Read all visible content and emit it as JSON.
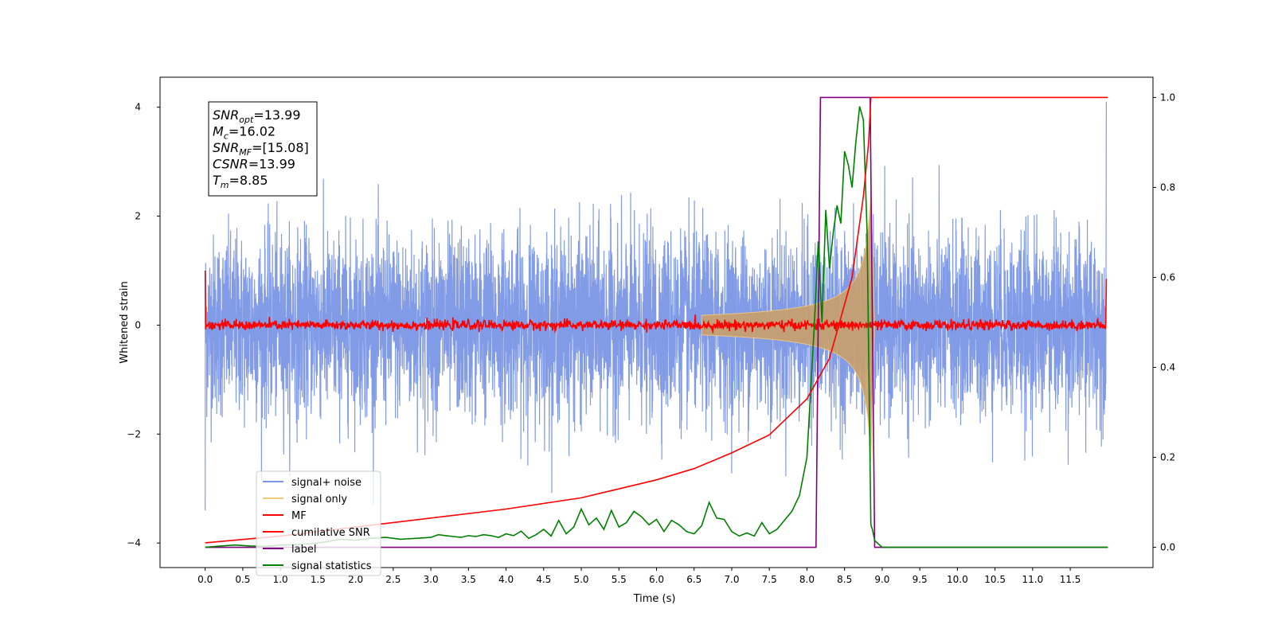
{
  "chart_data": {
    "type": "line",
    "title": "",
    "xlabel": "Time (s)",
    "ylabel": "Whitened strain",
    "xlim": [
      -0.6,
      12.6
    ],
    "ylim": [
      -4.45,
      4.55
    ],
    "y2lim": [
      -0.045,
      1.045
    ],
    "xticks": [
      "0.0",
      "0.5",
      "1.0",
      "1.5",
      "2.0",
      "2.5",
      "3.0",
      "3.5",
      "4.0",
      "4.5",
      "5.0",
      "5.5",
      "6.0",
      "6.5",
      "7.0",
      "7.5",
      "8.0",
      "8.5",
      "9.0",
      "9.5",
      "10.0",
      "10.5",
      "11.0",
      "11.5"
    ],
    "yticks_left": [
      "−4",
      "−2",
      "0",
      "2",
      "4"
    ],
    "yticks_right": [
      "0.0",
      "0.2",
      "0.4",
      "0.6",
      "0.8",
      "1.0"
    ],
    "grid": false,
    "legend_placement": "lower-left",
    "annotation": [
      {
        "base": "SNR",
        "sub": "opt",
        "value": "=13.99"
      },
      {
        "base": "M",
        "sub": "c",
        "value": "=16.02"
      },
      {
        "base": "SNR",
        "sub": "MF",
        "value": "=[15.08]"
      },
      {
        "base": "CSNR",
        "sub": "",
        "value": "=13.99"
      },
      {
        "base": "T",
        "sub": "m",
        "value": "=8.85"
      }
    ],
    "series": [
      {
        "name": "signal+ noise",
        "color": "#7b96e6",
        "axis": "left",
        "description": "white noise, std ~0.8, range ~[-4, 4]"
      },
      {
        "name": "signal only",
        "color": "#f5c97a",
        "axis": "left",
        "chirp": {
          "t_merge": 8.85,
          "peak_amp": 2.5,
          "ring_end": 8.9
        }
      },
      {
        "name": "MF",
        "color": "#ff0000",
        "axis": "left",
        "description": "matched filter output, ~0 +/- 0.1, edges ~1.0 and ~0.85"
      },
      {
        "name": "cumilative SNR",
        "color": "#ff0000",
        "axis": "right",
        "x": [
          0.0,
          1.0,
          2.0,
          3.0,
          4.0,
          5.0,
          6.0,
          6.5,
          7.0,
          7.5,
          8.0,
          8.3,
          8.6,
          8.75,
          8.82,
          8.85,
          8.86,
          12.0
        ],
        "y": [
          0.01,
          0.025,
          0.045,
          0.065,
          0.085,
          0.11,
          0.15,
          0.175,
          0.21,
          0.25,
          0.33,
          0.42,
          0.6,
          0.78,
          0.9,
          1.0,
          1.0,
          1.0
        ]
      },
      {
        "name": "label",
        "color": "#800080",
        "axis": "right",
        "x": [
          0.0,
          8.12,
          8.18,
          8.84,
          8.9,
          12.0
        ],
        "y": [
          0.0,
          0.0,
          1.0,
          1.0,
          0.0,
          0.0
        ]
      },
      {
        "name": "signal statistics",
        "color": "#008000",
        "axis": "right",
        "x": [
          0.0,
          0.2,
          0.4,
          0.6,
          0.8,
          1.0,
          1.2,
          1.4,
          1.6,
          1.8,
          2.0,
          2.2,
          2.4,
          2.6,
          2.8,
          3.0,
          3.1,
          3.2,
          3.3,
          3.4,
          3.5,
          3.6,
          3.7,
          3.8,
          3.9,
          4.0,
          4.1,
          4.2,
          4.3,
          4.4,
          4.5,
          4.6,
          4.7,
          4.8,
          4.9,
          5.0,
          5.1,
          5.2,
          5.3,
          5.4,
          5.5,
          5.6,
          5.7,
          5.8,
          5.9,
          6.0,
          6.1,
          6.2,
          6.3,
          6.4,
          6.5,
          6.6,
          6.7,
          6.8,
          6.9,
          7.0,
          7.1,
          7.2,
          7.3,
          7.4,
          7.5,
          7.6,
          7.7,
          7.8,
          7.9,
          8.0,
          8.1,
          8.15,
          8.2,
          8.25,
          8.3,
          8.35,
          8.4,
          8.45,
          8.5,
          8.55,
          8.6,
          8.65,
          8.7,
          8.75,
          8.8,
          8.85,
          8.87,
          8.9,
          9.0,
          12.0
        ],
        "y": [
          0.0,
          0.003,
          0.005,
          0.003,
          0.002,
          0.005,
          0.006,
          0.008,
          0.012,
          0.018,
          0.016,
          0.02,
          0.022,
          0.018,
          0.02,
          0.022,
          0.028,
          0.026,
          0.024,
          0.022,
          0.026,
          0.024,
          0.028,
          0.026,
          0.022,
          0.03,
          0.026,
          0.036,
          0.02,
          0.028,
          0.04,
          0.025,
          0.06,
          0.03,
          0.045,
          0.085,
          0.05,
          0.065,
          0.04,
          0.082,
          0.045,
          0.055,
          0.08,
          0.068,
          0.05,
          0.062,
          0.035,
          0.06,
          0.05,
          0.035,
          0.03,
          0.048,
          0.1,
          0.065,
          0.062,
          0.035,
          0.025,
          0.032,
          0.025,
          0.055,
          0.03,
          0.04,
          0.06,
          0.08,
          0.115,
          0.2,
          0.5,
          0.68,
          0.5,
          0.75,
          0.62,
          0.7,
          0.76,
          0.72,
          0.88,
          0.85,
          0.8,
          0.9,
          0.98,
          0.95,
          0.7,
          0.05,
          0.04,
          0.015,
          0.0,
          0.0
        ]
      }
    ]
  }
}
